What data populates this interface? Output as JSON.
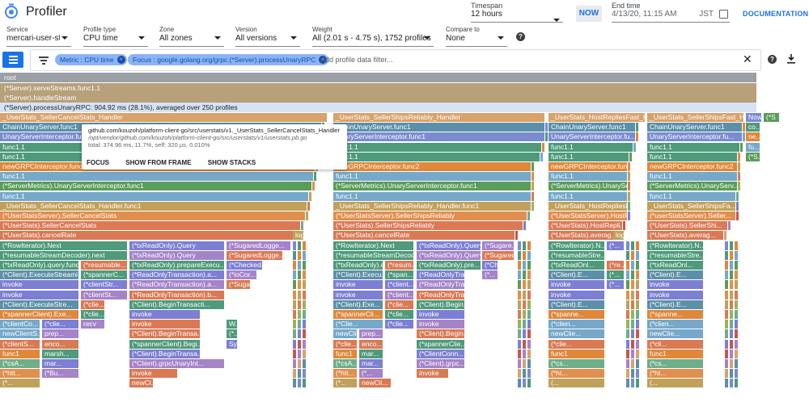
{
  "app": {
    "title": "Profiler"
  },
  "timespan": {
    "label": "Timespan",
    "value": "12 hours"
  },
  "now_label": "NOW",
  "end_time": {
    "label": "End time",
    "value": "4/13/20, 11:15 AM",
    "tz": "JST"
  },
  "documentation_label": "DOCUMENTATION",
  "filters": {
    "service": {
      "label": "Service",
      "value": "mercari-user-st..."
    },
    "profile_type": {
      "label": "Profile type",
      "value": "CPU time"
    },
    "zone": {
      "label": "Zone",
      "value": "All zones"
    },
    "version": {
      "label": "Version",
      "value": "All versions"
    },
    "weight": {
      "label": "Weight",
      "value": "All (2.01 s - 4.75 s), 1752 profiles"
    },
    "compare_to": {
      "label": "Compare to",
      "value": "None"
    }
  },
  "filter_bar": {
    "chips": [
      "Metric : CPU time",
      "Focus : google.golang.org/grpc.(*Server).processUnaryRPC"
    ],
    "placeholder": "Add profile data filter..."
  },
  "flame": {
    "root": "root",
    "row1": "(*Server).serveStreams.func1.1",
    "row2": "(*Server).handleStream",
    "focus_row": "(*Server).processUnaryRPC: 904.92 ms (28.1%), averaged over 250 profiles",
    "columns": [
      {
        "frames": [
          "_UserStats_SellerCancelStats_Handler",
          "ChainUnaryServer.func1",
          "UnaryServerInterceptor.func1",
          "func1.1",
          "func1.1",
          "newGRPCInterceptor.func2",
          "func1.1",
          "(*ServerMetrics).UnaryServerInterceptor.func1",
          "func1.1",
          "_UserStats_SellerCancelStats_Handler.func1",
          "(*UserStatsServer).SellerCancelStats",
          "(*UserStats).SellerCancelStats",
          "(*UserStats).cancelRate"
        ]
      },
      {
        "frames": [
          "_UserStats_SellerShipsReliably_Handler",
          "ChainUnaryServer.func1",
          "UnaryServerInterceptor.func1",
          "func1.1",
          "func1.1",
          "newGRPCInterceptor.func2",
          "func1.1",
          "(*ServerMetrics).UnaryServerInterceptor.func1",
          "func1.1",
          "_UserStats_SellerShipsReliably_Handler.func1",
          "(*UserStatsServer).SellerShipsReliably",
          "(*UserStats).SellerShipsReliably",
          "(*UserStats).cancelRate"
        ]
      },
      {
        "frames": [
          "_UserStats_HostRepliesFast_Ha...",
          "ChainUnaryServer.func1",
          "UnaryServerInterceptor.fu...",
          "func1.1",
          "func1.1",
          "newGRPCInterceptor.func2",
          "func1.1",
          "(*ServerMetrics).UnaryServ...",
          "func1.1",
          "_UserStats_HostRepliesFast...",
          "(*UserStatsServer).HostR...",
          "(*UserStats).HostRepli...",
          "(*UserStats).averag..."
        ]
      },
      {
        "frames": [
          "_UserStats_SellerShipsFast_Ha...",
          "ChainUnaryServer.func1",
          "UnaryServerInterceptor.fu...",
          "func1.1",
          "func1.1",
          "newGRPCInterceptor.func2",
          "func1.1",
          "(*ServerMetrics).UnaryServ...",
          "func1.1",
          "_UserStats_SellerShipsFa...",
          "(*userStatsServer).Seller...",
          "(*UserStats).SellerShi...",
          "(*UserStats).averag..."
        ]
      }
    ],
    "extras": {
      "now": "Now",
      "log": "log",
      "misc": [
        "(*S",
        "co...",
        "ne...",
        "fu...",
        "(*S..."
      ]
    },
    "lower": {
      "col1": [
        [
          "(*RowIterator).Next",
          "(*txReadOnly).Query",
          "(*SugaredLogge..."
        ],
        [
          "(*resumableStreamDecoder).next",
          "(*txReadOnly).Query",
          "(*SugaredLogge..."
        ],
        [
          "(*txReadOnly).query.func2",
          "(*resumable...",
          "(*txReadOnly).prepareExecu...",
          "(*Checked..."
        ],
        [
          "(*Client).ExecuteStreami...",
          "(*spannerC...",
          "(*ReadOnlyTransaction).a...",
          "(*ioCor..."
        ],
        [
          "invoke",
          "(*clientStr...",
          "(*ReadOnlyTransaction).a...",
          "(*Sugar..."
        ],
        [
          "invoke",
          "(*clientSt...",
          "(*ReadOnlyTransaction).b..."
        ],
        [
          "(*Client).ExecuteStre...",
          "(*clie...",
          "(*Client).BeginTransacti..."
        ],
        [
          "(*spannerClient).Exe...",
          "(*clie...",
          "invoke"
        ],
        [
          "(*clientCo...",
          "(*clie...",
          "recv",
          "invoke",
          "W..."
        ],
        [
          "newClientS...",
          "prep...",
          "(*Client).BeginTransa...",
          "(*..."
        ],
        [
          "(*clientS...",
          "enco...",
          "(*spannerClient).Begi...",
          "Sy..."
        ],
        [
          "func1",
          "marsh...",
          "(*Client).BeginTransa..."
        ],
        [
          "(*csA...",
          "mar...",
          "(*Client).grpcUnaryInt..."
        ],
        [
          "(*htt...",
          "(*Bu...",
          "invoke"
        ],
        [
          "(*...",
          "newCl..."
        ]
      ],
      "col2": [
        [
          "(*RowIterator).Next",
          "(*txReadOnly).Query",
          "(*Sugare..."
        ],
        [
          "(*resumableStreamDecod...",
          "(*txReadOnly).Query",
          "(*Sugared..."
        ],
        [
          "(*txReadOnly).query.fu...",
          "(*resum...",
          "(*txReadOnly).pre...",
          "(*Ch..."
        ],
        [
          "(*Client).Execu...",
          "(*span...",
          "(*ReadOnlyTrans...",
          "(*..."
        ],
        [
          "invoke",
          "(*client...",
          "(*ReadOnlyTra..."
        ],
        [
          "invoke",
          "(*client...",
          "(*ReadOnlyTrans..."
        ],
        [
          "(*Client).Exe...",
          "(*clie...",
          "(*Client).Begin..."
        ],
        [
          "(*spannerCli...",
          "(*clie...",
          "invoke"
        ],
        [
          "(*Clie...",
          "(*clie...",
          "invoke"
        ],
        [
          "newCli...",
          "prep...",
          "(*Client).Begin..."
        ],
        [
          "(*clie...",
          "enco...",
          "(*spannerClie..."
        ],
        [
          "func1",
          "mar...",
          "(*ClientConn..."
        ],
        [
          "(*csA...",
          "mar...",
          "(*Client).grpc..."
        ],
        [
          "(*htt...",
          "(*...",
          "invoke"
        ],
        [
          "(*...",
          "newCli..."
        ]
      ],
      "col3": [
        [
          "(*RowIterator).N...",
          "(*..."
        ],
        [
          "(*resumableStre..."
        ],
        [
          "(*txReadOnl...",
          "(*re..."
        ],
        [
          "(*Client).E...",
          "(*..."
        ],
        [
          "invoke",
          "(*..."
        ],
        [
          "invoke"
        ],
        [
          "(*Client).E..."
        ],
        [
          "(*spanne..."
        ],
        [
          "(*clien..."
        ],
        [
          "newClie..."
        ],
        [
          "(*clie..."
        ],
        [
          "func1"
        ],
        [
          "(*cs..."
        ],
        [
          "(*ht..."
        ],
        [
          "(..."
        ]
      ],
      "col4": [
        [
          "(*RowIterator).N..."
        ],
        [
          "(*resumableStre..."
        ],
        [
          "(*txReadOnl..."
        ],
        [
          "(*Client).E..."
        ],
        [
          "invoke"
        ],
        [
          "invoke"
        ],
        [
          "(*Client).E..."
        ],
        [
          "(*spanne..."
        ],
        [
          "(*clien..."
        ],
        [
          "newClie..."
        ],
        [
          "(*cli..."
        ],
        [
          "func1"
        ],
        [
          "(*cs..."
        ],
        [
          "(*ht..."
        ],
        [
          "(..."
        ]
      ]
    }
  },
  "tooltip": {
    "title": "github.com/kouzoh/platform-client-go/src/userstats/v1._UserStats_SellerCancelStats_Handler",
    "path": "/opt/vendor/github.com/kouzoh/platform-client-go/src/userstats/v1/userstats.pb.go",
    "stats": "total: 374.96 ms, 11.7%, self: 320 µs, 0.010%",
    "actions": [
      "FOCUS",
      "SHOW FROM FRAME",
      "SHOW STACKS"
    ]
  },
  "colors": {
    "root": "#9aa0a6",
    "serve": "#b7a07a",
    "focus_bg": "#d7e3f4",
    "accent": "#1a73e8",
    "palette": [
      "#d8a26b",
      "#5c8fa8",
      "#7a8bd0",
      "#4e9a7a",
      "#e0873a",
      "#76a8c9",
      "#5a9c5a",
      "#e08f4e",
      "#c0a15b",
      "#d97a55",
      "#9db25f",
      "#6fae8b",
      "#7c7fd3",
      "#c3584f",
      "#a583c9"
    ]
  }
}
